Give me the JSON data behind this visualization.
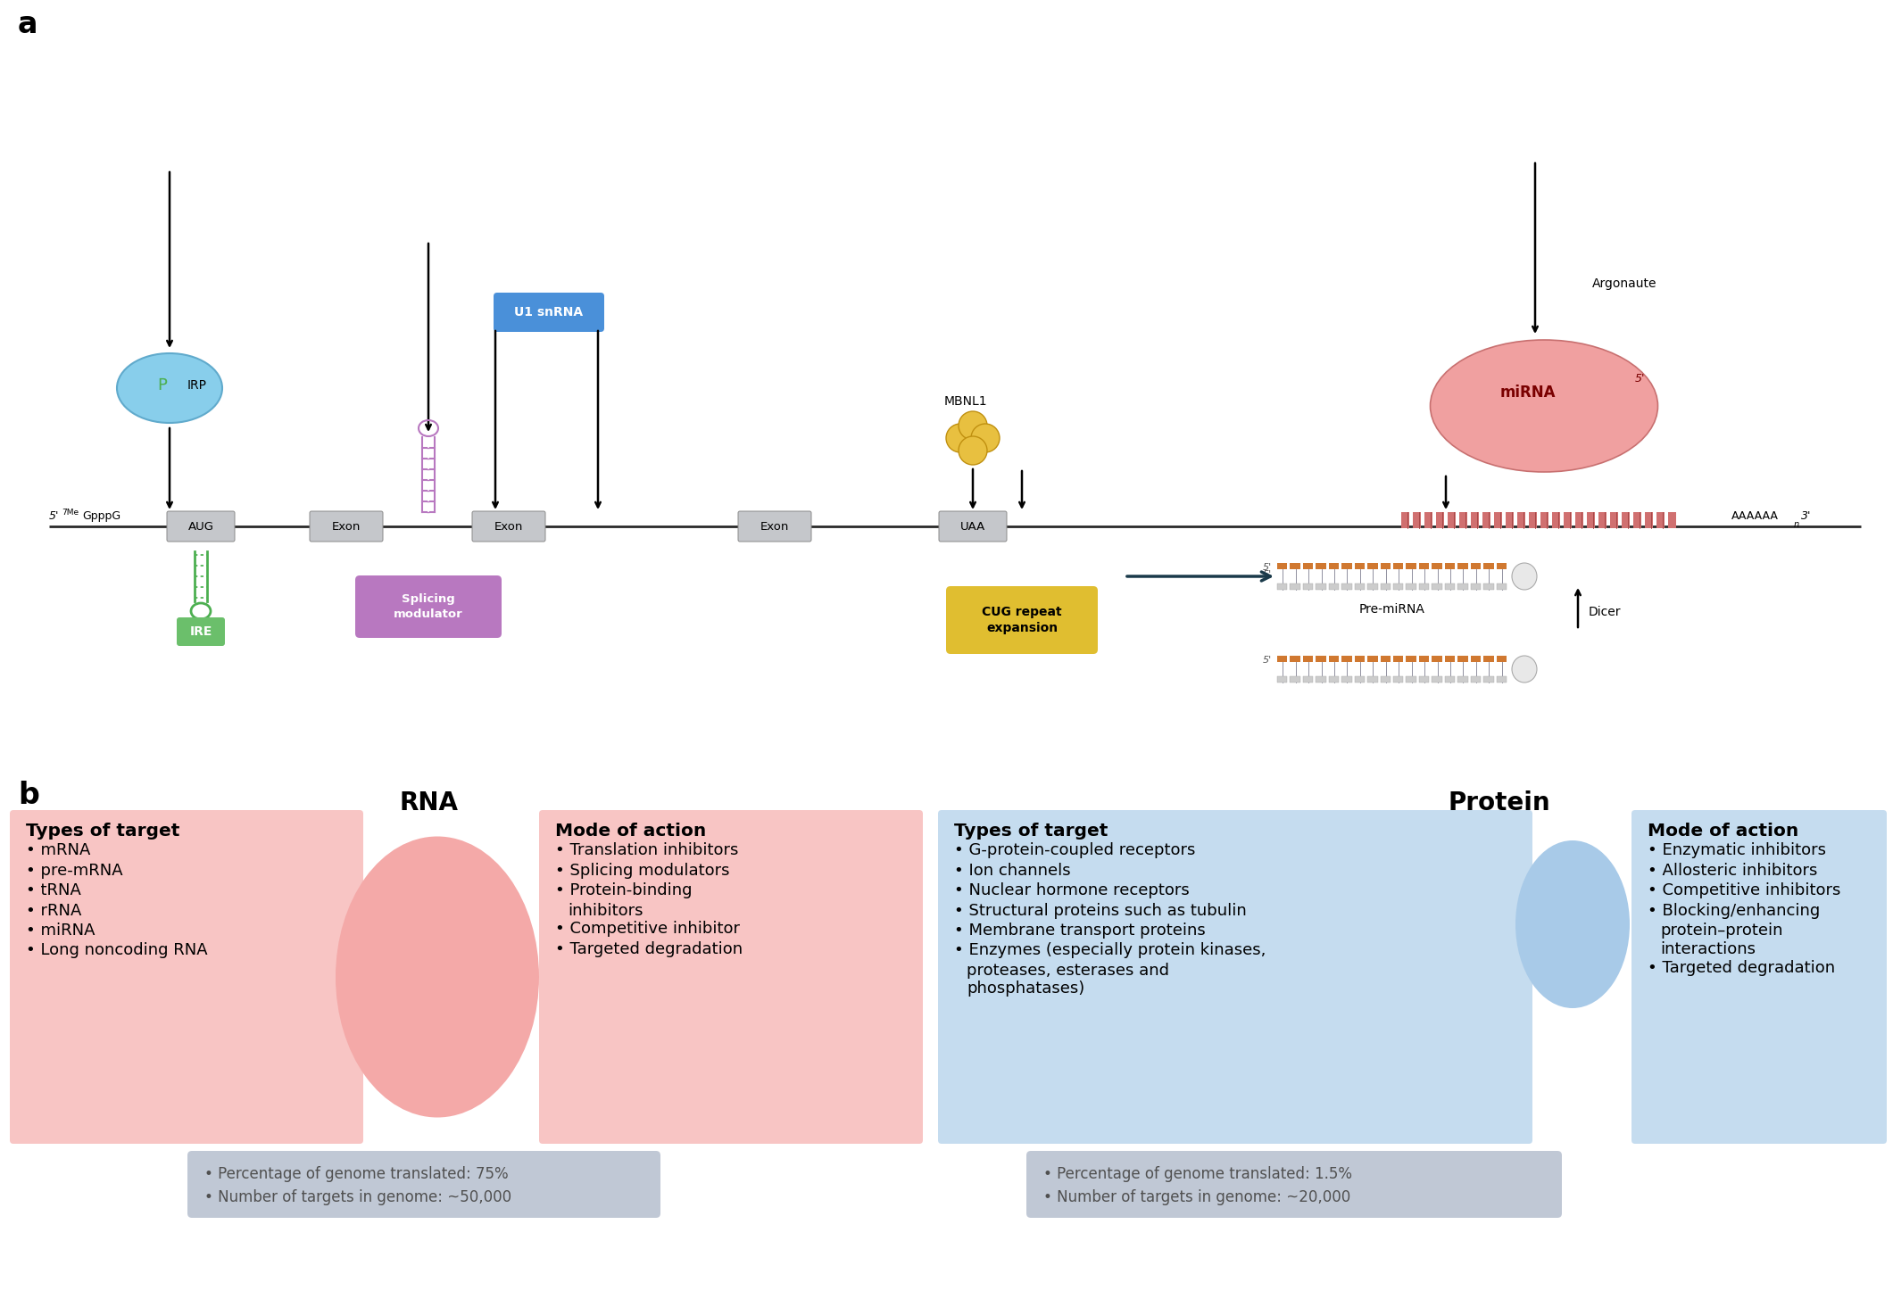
{
  "fig_width": 21.21,
  "fig_height": 14.56,
  "bg_color": "#FFFFFF",
  "panel_a_label": "a",
  "panel_b_label": "b",
  "rna_section_label": "RNA",
  "protein_section_label": "Protein",
  "rna_salmon_light": "#F8C5C4",
  "protein_blue_light": "#C5DCEF",
  "rna_circle_color": "#F4A9A8",
  "protein_circle_color": "#A8CAE8",
  "stat_gray": "#C0C8D5",
  "mrna_line_color": "#2A2A2A",
  "box_gray_face": "#C5C7CB",
  "box_gray_edge": "#8A8A8A",
  "ire_green": "#4CAF50",
  "ire_box_green": "#6BBF6B",
  "irp_blue_face": "#88CEEB",
  "irp_blue_edge": "#60AACC",
  "smod_purple": "#B878C0",
  "u1_blue": "#4A90D9",
  "cug_gold": "#E0BE30",
  "mirna_face": "#F0A0A0",
  "mirna_edge": "#C87070",
  "mbnl1_gold_face": "#E8C040",
  "mbnl1_gold_edge": "#C09010",
  "orange_strand": "#D07830",
  "gray_strand": "#CCCCCC",
  "dark_arrow": "#1A3A4A",
  "bullet": "•",
  "rna_types_title": "Types of target",
  "rna_types": [
    "mRNA",
    "pre-mRNA",
    "tRNA",
    "rRNA",
    "miRNA",
    "Long noncoding RNA"
  ],
  "rna_mode_title": "Mode of action",
  "rna_mode": [
    "Translation inhibitors",
    "Splicing modulators",
    "Protein-binding",
    "  inhibitors",
    "Competitive inhibitor",
    "Targeted degradation"
  ],
  "rna_mode_wrap": [
    [
      "Translation inhibitors"
    ],
    [
      "Splicing modulators"
    ],
    [
      "Protein-binding",
      "inhibitors"
    ],
    [
      "Competitive inhibitor"
    ],
    [
      "Targeted degradation"
    ]
  ],
  "protein_types_title": "Types of target",
  "protein_types_wrap": [
    [
      "G-protein-coupled receptors"
    ],
    [
      "Ion channels"
    ],
    [
      "Nuclear hormone receptors"
    ],
    [
      "Structural proteins such as tubulin"
    ],
    [
      "Membrane transport proteins"
    ],
    [
      "Enzymes (especially protein kinases,",
      "proteases, esterases and",
      "phosphatases)"
    ]
  ],
  "protein_mode_title": "Mode of action",
  "protein_mode_wrap": [
    [
      "Enzymatic inhibitors"
    ],
    [
      "Allosteric inhibitors"
    ],
    [
      "Competitive inhibitors"
    ],
    [
      "Blocking/enhancing",
      "protein–protein",
      "interactions"
    ],
    [
      "Targeted degradation"
    ]
  ],
  "rna_stat1": "Percentage of genome translated: 75%",
  "rna_stat2": "Number of targets in genome: ~50,000",
  "prot_stat1": "Percentage of genome translated: 1.5%",
  "prot_stat2": "Number of targets in genome: ~20,000"
}
